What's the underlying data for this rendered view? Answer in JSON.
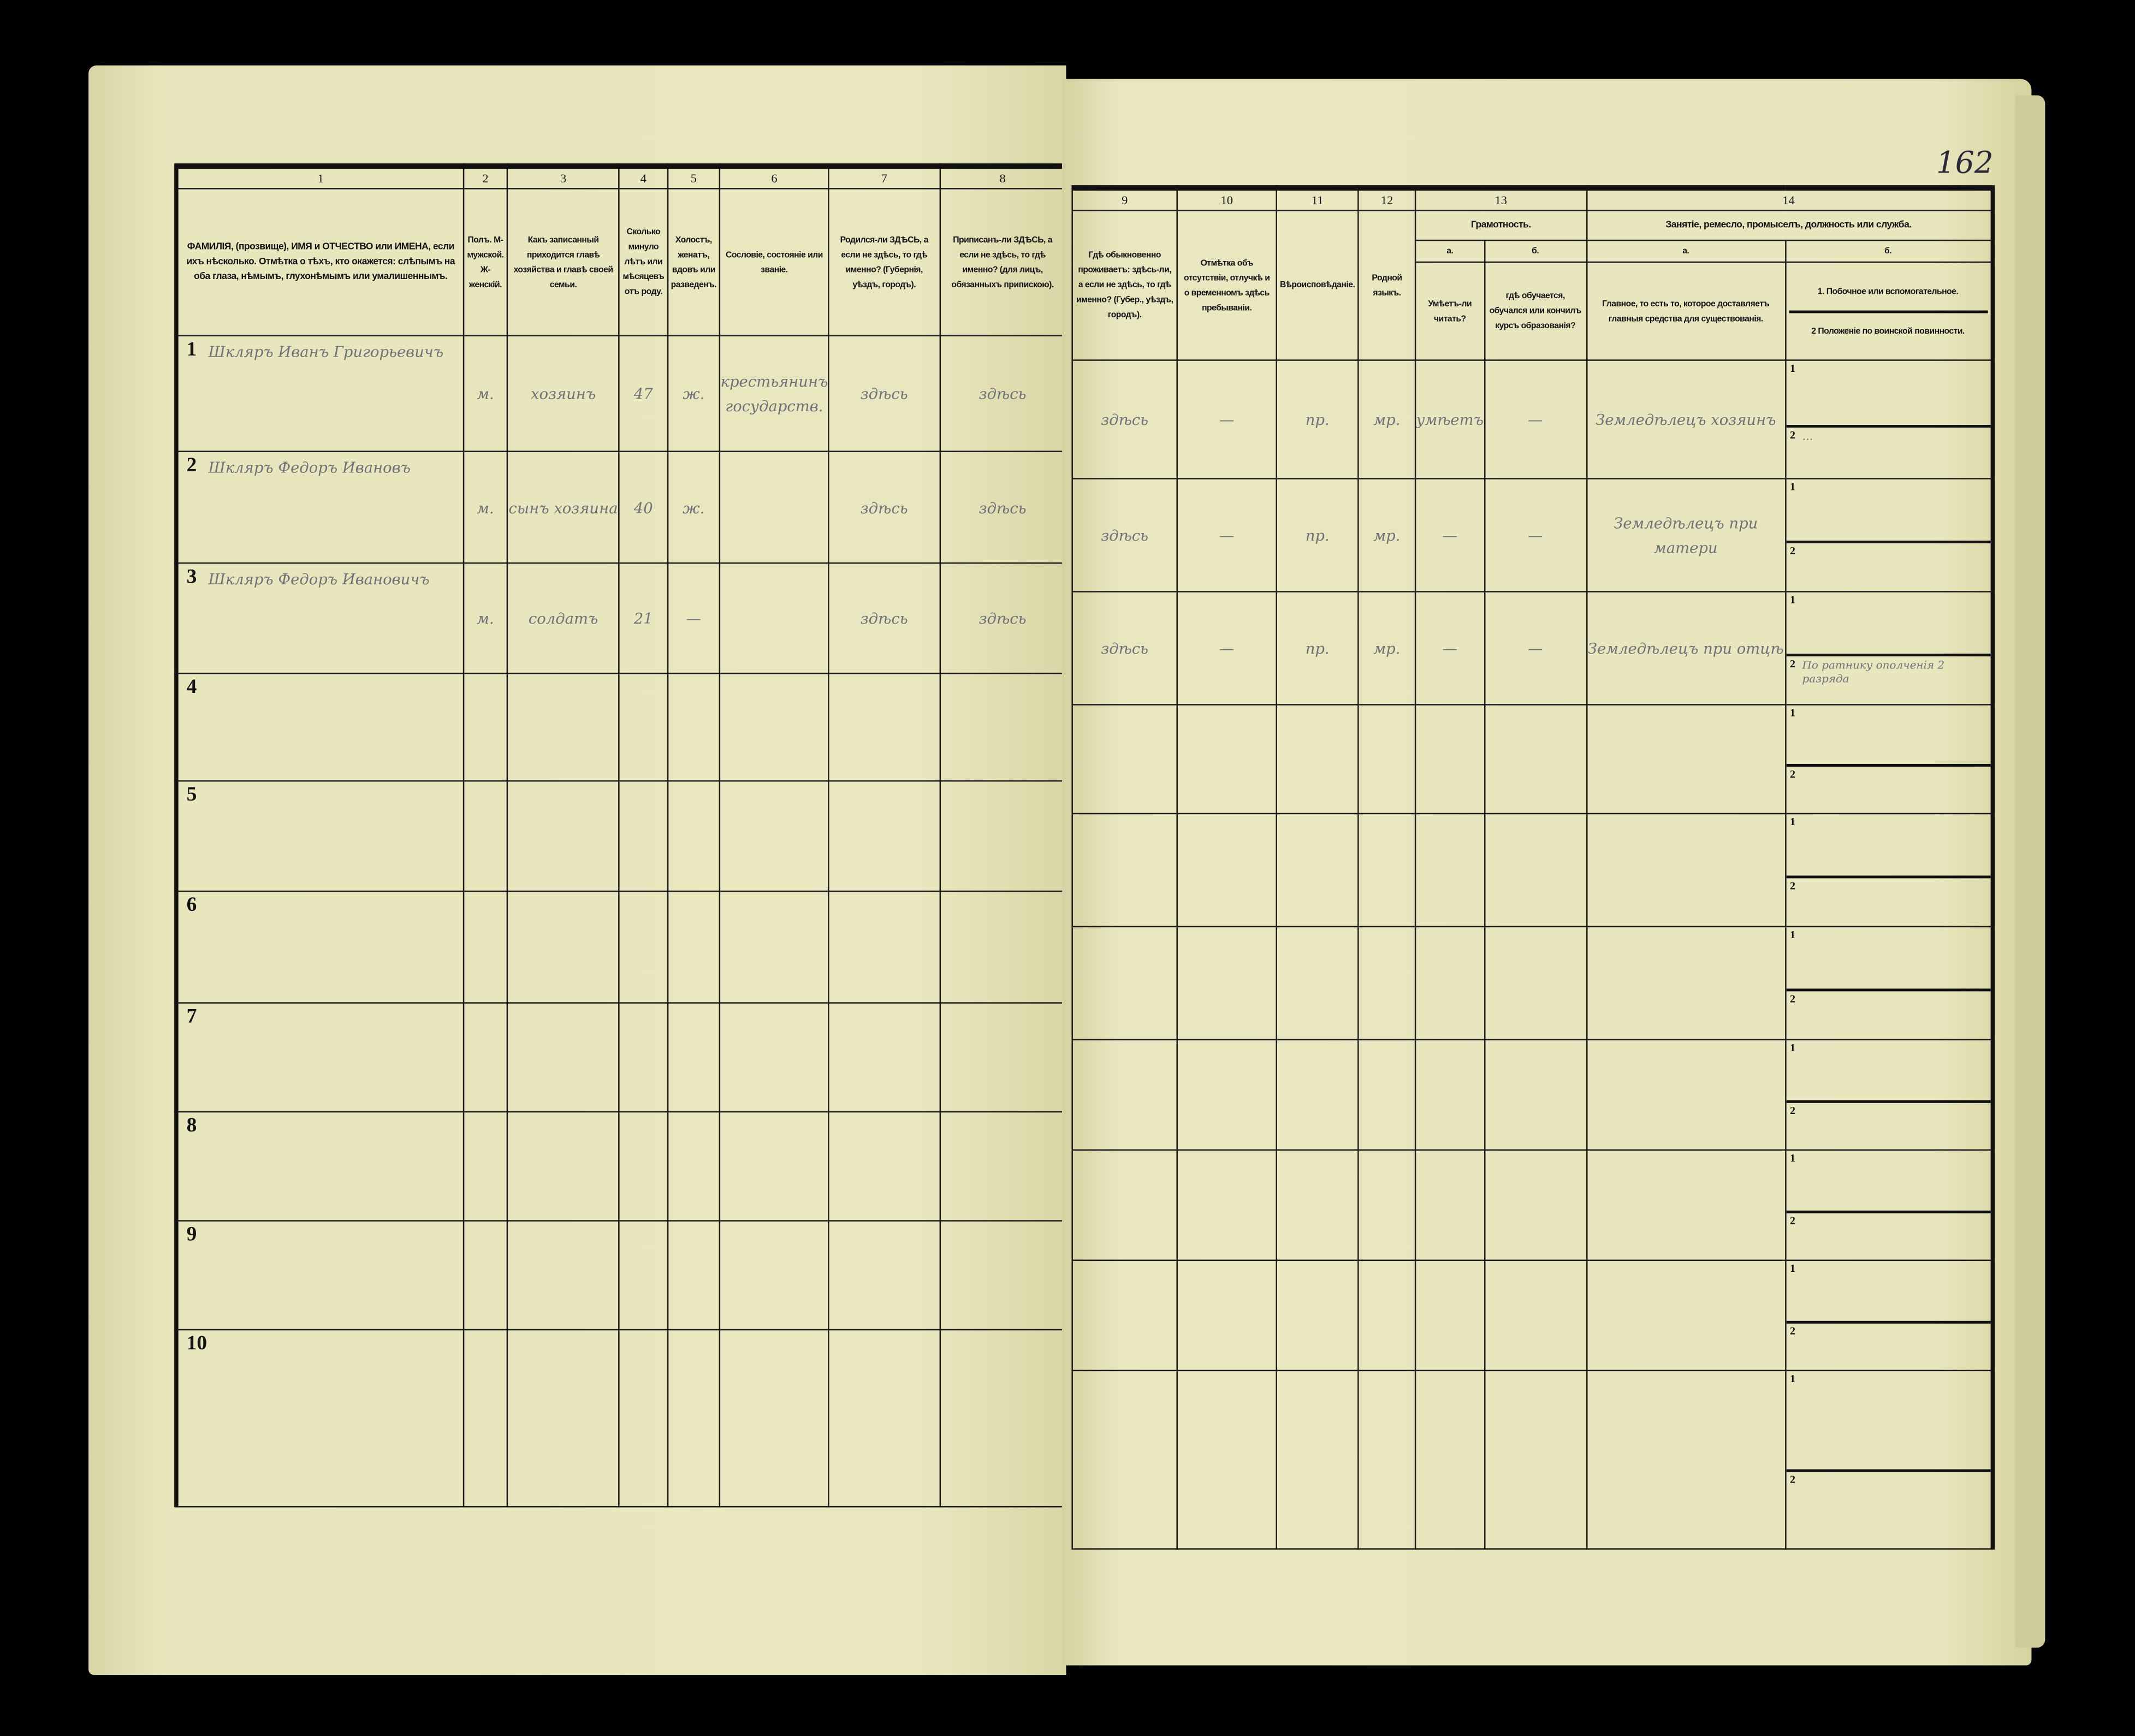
{
  "page_number": "162",
  "left_headers": [
    {
      "num": "1",
      "text": "ФАМИЛІЯ, (прозвище), ИМЯ и ОТЧЕСТВО или ИМЕНА, если ихъ нѣсколько. Отмѣтка о тѣхъ, кто окажется: слѣпымъ на оба глаза, нѣмымъ, глухонѣмымъ или умалишеннымъ."
    },
    {
      "num": "2",
      "text": "Полъ. М-мужской. Ж-женскій."
    },
    {
      "num": "3",
      "text": "Какъ записанный приходится главѣ хозяйства и главѣ своей семьи."
    },
    {
      "num": "4",
      "text": "Сколько минуло лѣтъ или мѣсяцевъ отъ роду."
    },
    {
      "num": "5",
      "text": "Холостъ, женатъ, вдовъ или разведенъ."
    },
    {
      "num": "6",
      "text": "Сословіе, состояніе или званіе."
    },
    {
      "num": "7",
      "text": "Родился-ли ЗДѢСЬ, а если не здѣсь, то гдѣ именно? (Губернія, уѣздъ, городъ)."
    },
    {
      "num": "8",
      "text": "Приписанъ-ли ЗДѢСЬ, а если не здѣсь, то гдѣ именно? (для лицъ, обязанныхъ припискою)."
    }
  ],
  "right_headers": {
    "c9": {
      "num": "9",
      "text": "Гдѣ обыкновенно проживаетъ: здѣсь-ли, а если не здѣсь, то гдѣ именно? (Губер., уѣздъ, городъ)."
    },
    "c10": {
      "num": "10",
      "text": "Отмѣтка объ отсутствіи, отлучкѣ и о временномъ здѣсь пребываніи."
    },
    "c11": {
      "num": "11",
      "text": "Вѣроисповѣданіе."
    },
    "c12": {
      "num": "12",
      "text": "Родной языкъ."
    },
    "c13": {
      "num": "13",
      "text": "Грамотность.",
      "a_label": "а.",
      "a_text": "Умѣетъ-ли читать?",
      "b_label": "б.",
      "b_text": "гдѣ обучается, обучался или кончилъ курсъ образованія?"
    },
    "c14": {
      "num": "14",
      "text": "Занятіе, ремесло, промыселъ, должность или служба.",
      "a_label": "а.",
      "a_text": "Главное, то есть то, которое доставляетъ главныя средства для существованія.",
      "b_label": "б.",
      "b_text1": "1. Побочное или вспомогательное.",
      "b_text2": "2 Положеніе по воинской повинности."
    }
  },
  "rows": [
    {
      "n": "1",
      "name": "Шкляръ Иванъ Григорьевичъ",
      "sex": "м.",
      "relation": "хозяинъ",
      "age": "47",
      "marital": "ж.",
      "estate": "крестьянинъ государств.",
      "born": "здѣсь",
      "registered": "здѣсь",
      "resides": "здѣсь",
      "absence": "—",
      "religion": "пр.",
      "language": "мр.",
      "literate": "умѣетъ",
      "education": "—",
      "occupation": "Земледѣлецъ хозяинъ",
      "sub1": "",
      "sub2": "…"
    },
    {
      "n": "2",
      "name": "Шкляръ Федоръ Ивановъ",
      "sex": "м.",
      "relation": "сынъ хозяина",
      "age": "40",
      "marital": "ж.",
      "estate": "",
      "born": "здѣсь",
      "registered": "здѣсь",
      "resides": "здѣсь",
      "absence": "—",
      "religion": "пр.",
      "language": "мр.",
      "literate": "—",
      "education": "—",
      "occupation": "Земледѣлецъ при матери",
      "sub1": "",
      "sub2": ""
    },
    {
      "n": "3",
      "name": "Шкляръ Федоръ Ивановичъ",
      "sex": "м.",
      "relation": "солдатъ",
      "age": "21",
      "marital": "—",
      "estate": "",
      "born": "здѣсь",
      "registered": "здѣсь",
      "resides": "здѣсь",
      "absence": "—",
      "religion": "пр.",
      "language": "мр.",
      "literate": "—",
      "education": "—",
      "occupation": "Земледѣлецъ при отцѣ",
      "sub1": "",
      "sub2": "По ратнику ополченія 2 разряда"
    },
    {
      "n": "4"
    },
    {
      "n": "5"
    },
    {
      "n": "6"
    },
    {
      "n": "7"
    },
    {
      "n": "8"
    },
    {
      "n": "9"
    },
    {
      "n": "10"
    }
  ],
  "sub_labels": {
    "one": "1",
    "two": "2"
  },
  "colors": {
    "paper": "#e6e3b8",
    "ink": "#141414",
    "handwriting": "#6d7178",
    "background": "#000000"
  }
}
